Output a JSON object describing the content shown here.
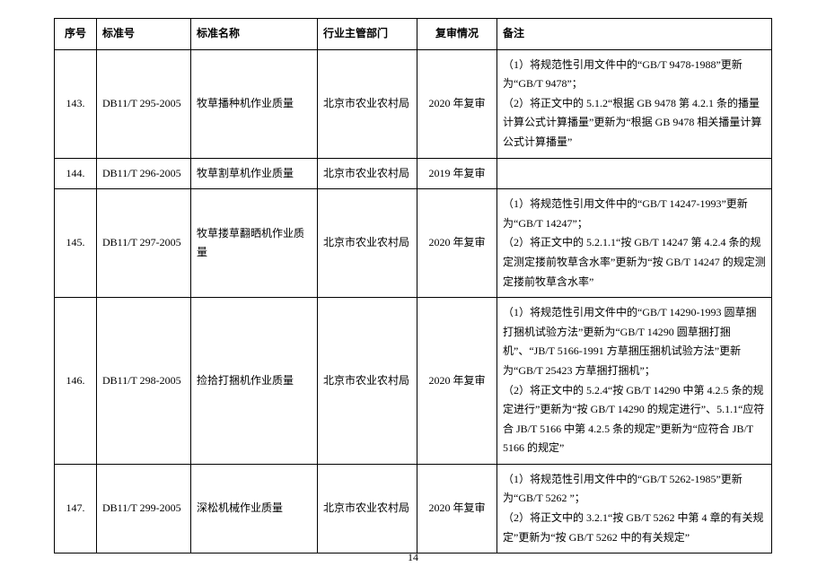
{
  "page_number": "14",
  "headers": {
    "seq": "序号",
    "std_no": "标准号",
    "std_name": "标准名称",
    "department": "行业主管部门",
    "review": "复审情况",
    "note": "备注"
  },
  "rows": [
    {
      "seq": "143.",
      "std_no": "DB11/T 295-2005",
      "std_name": "牧草播种机作业质量",
      "department": "北京市农业农村局",
      "review": "2020 年复审",
      "note": "（1）将规范性引用文件中的“GB/T 9478-1988”更新为“GB/T 9478”；\n（2）将正文中的 5.1.2“根据 GB 9478 第 4.2.1 条的播量计算公式计算播量”更新为“根据 GB 9478 相关播量计算公式计算播量”"
    },
    {
      "seq": "144.",
      "std_no": "DB11/T 296-2005",
      "std_name": "牧草割草机作业质量",
      "department": "北京市农业农村局",
      "review": "2019 年复审",
      "note": ""
    },
    {
      "seq": "145.",
      "std_no": "DB11/T 297-2005",
      "std_name": "牧草搂草翻晒机作业质量",
      "department": "北京市农业农村局",
      "review": "2020 年复审",
      "note": "（1）将规范性引用文件中的“GB/T 14247-1993”更新为“GB/T 14247”；\n（2）将正文中的 5.2.1.1“按 GB/T 14247 第 4.2.4 条的规定测定搂前牧草含水率”更新为“按 GB/T 14247 的规定测定搂前牧草含水率”"
    },
    {
      "seq": "146.",
      "std_no": "DB11/T 298-2005",
      "std_name": "捡拾打捆机作业质量",
      "department": "北京市农业农村局",
      "review": "2020 年复审",
      "note": "（1）将规范性引用文件中的“GB/T 14290-1993 圆草捆打捆机试验方法”更新为“GB/T 14290 圆草捆打捆机”、“JB/T 5166-1991 方草捆压捆机试验方法”更新为“GB/T 25423 方草捆打捆机”；\n（2）将正文中的 5.2.4“按 GB/T 14290 中第 4.2.5 条的规定进行”更新为“按 GB/T 14290 的规定进行”、5.1.1“应符合 JB/T 5166 中第 4.2.5 条的规定”更新为“应符合 JB/T 5166 的规定”"
    },
    {
      "seq": "147.",
      "std_no": "DB11/T 299-2005",
      "std_name": "深松机械作业质量",
      "department": "北京市农业农村局",
      "review": "2020 年复审",
      "note": "（1）将规范性引用文件中的“GB/T 5262-1985”更新为“GB/T 5262 ”；\n（2）将正文中的 3.2.1“按 GB/T 5262 中第 4 章的有关规定”更新为“按 GB/T 5262 中的有关规定”"
    }
  ]
}
